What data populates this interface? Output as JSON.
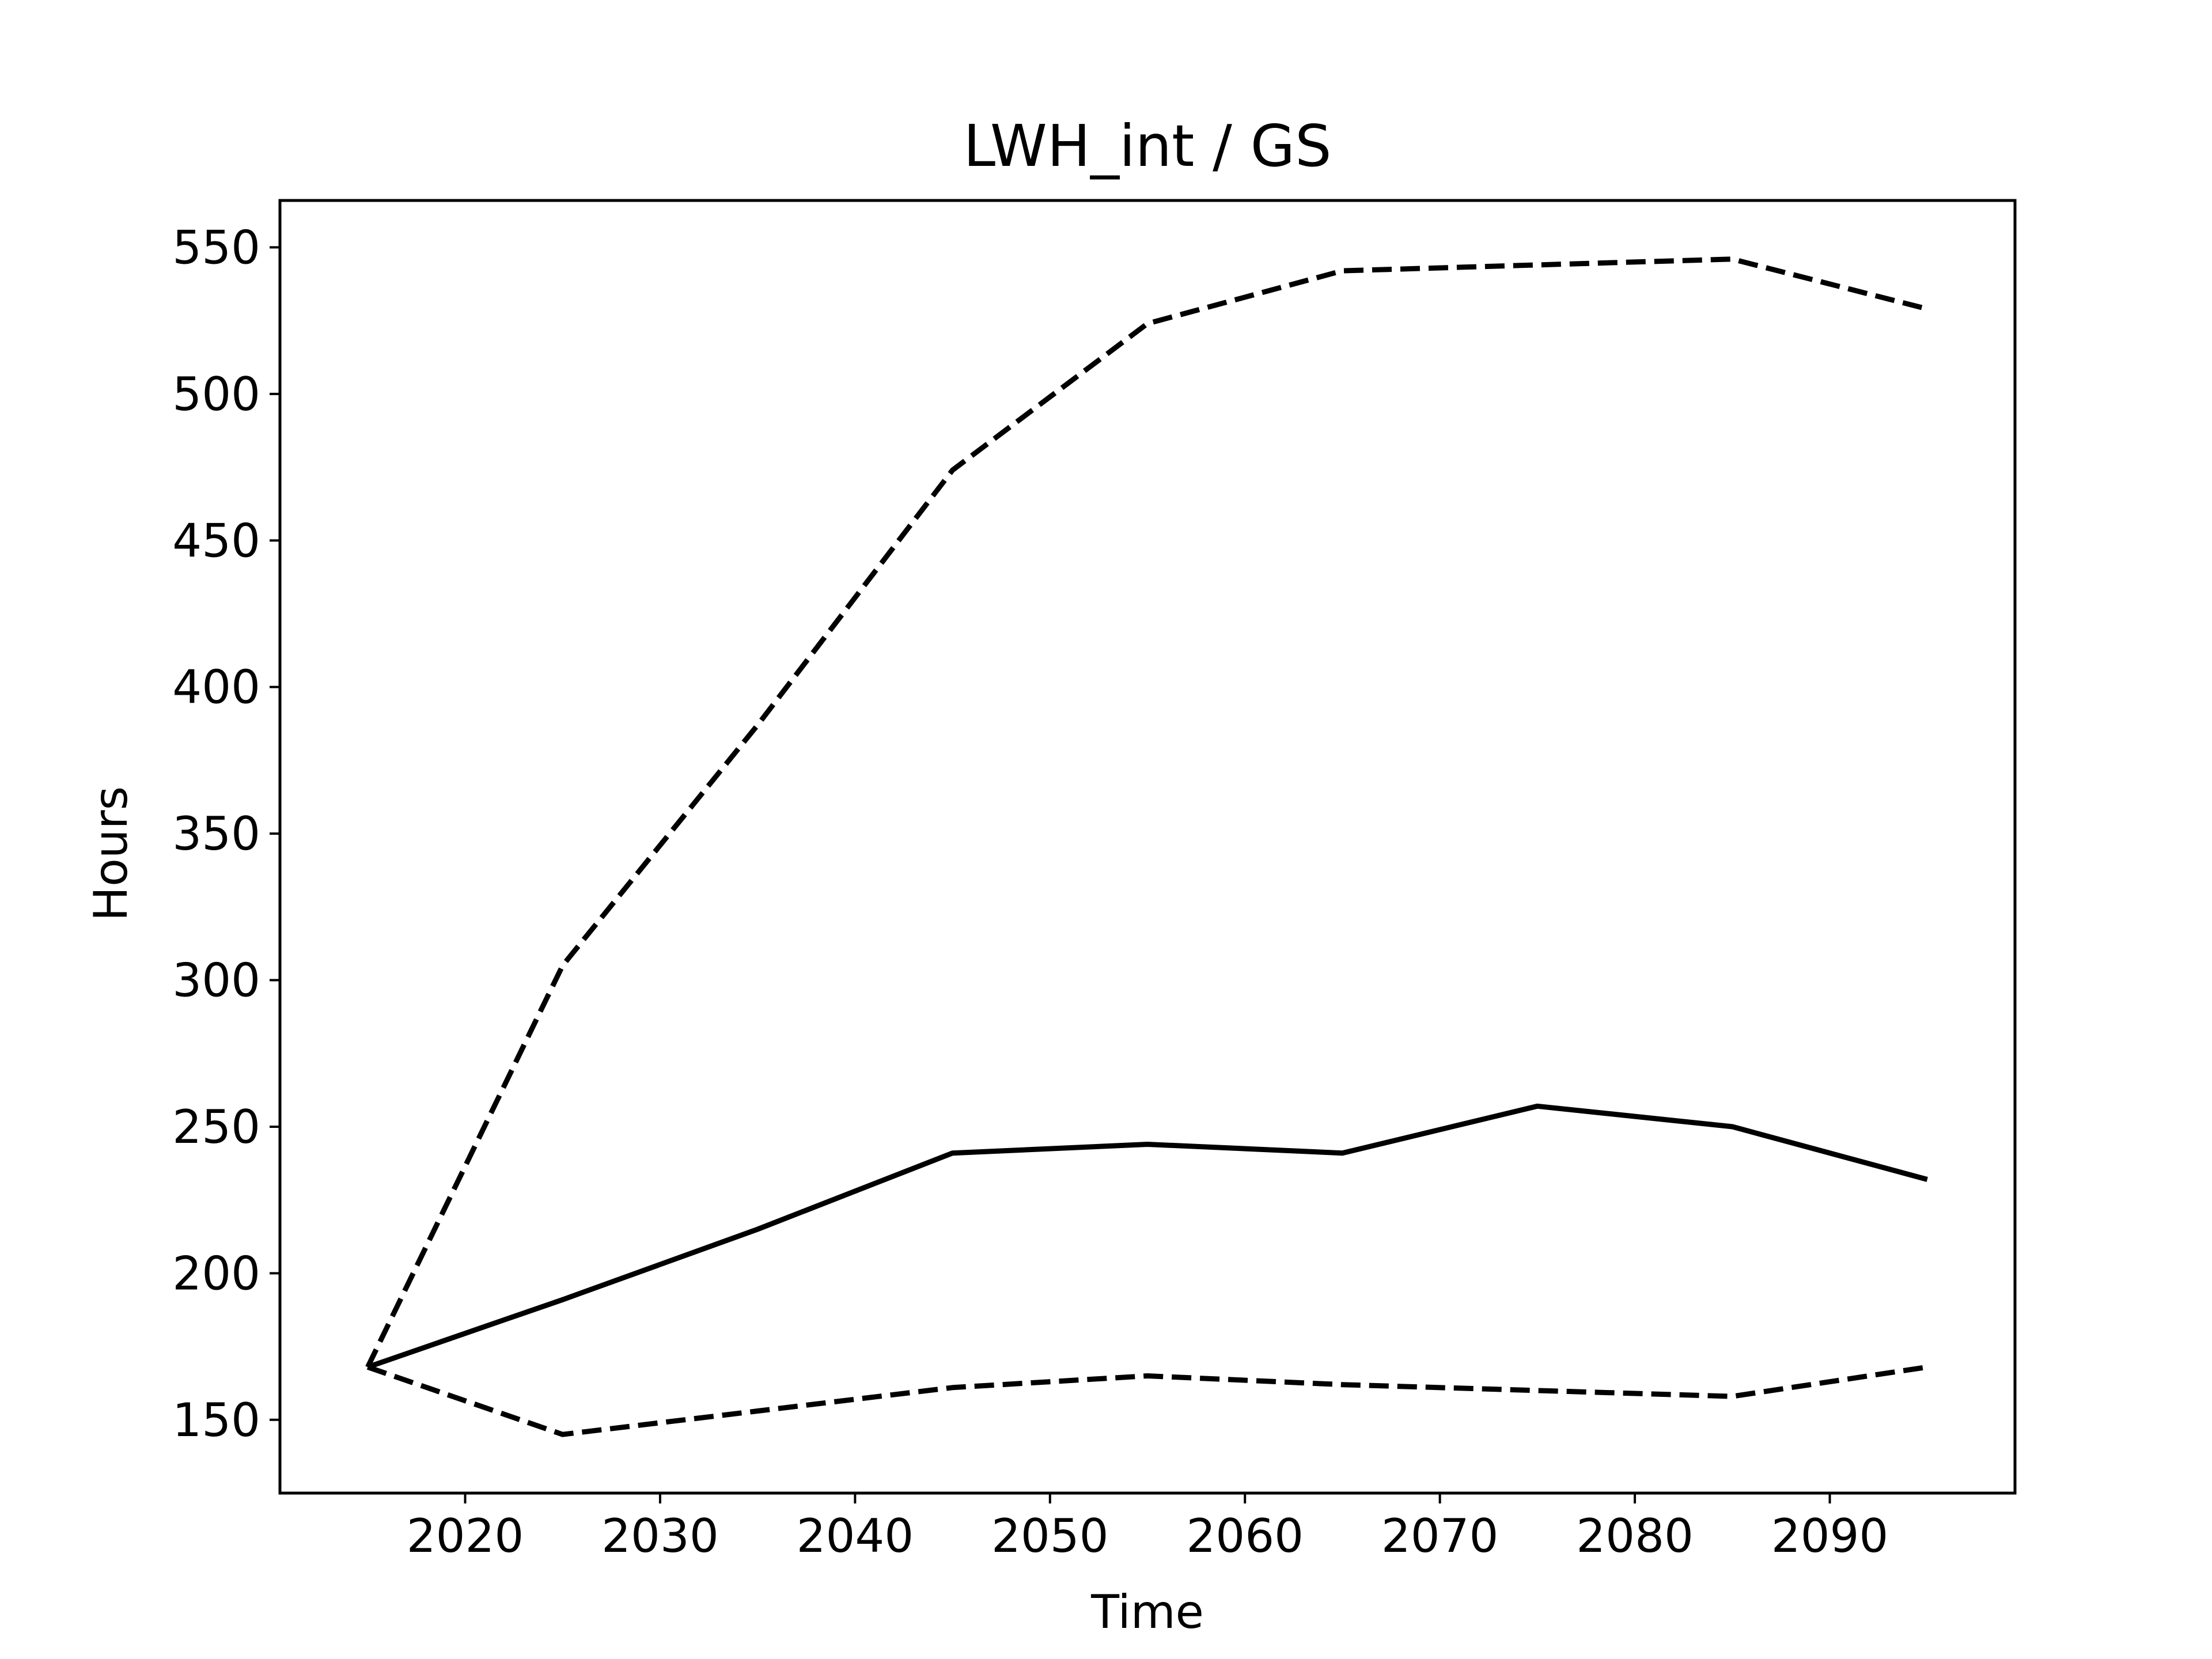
{
  "chart_data": {
    "type": "line",
    "title": "LWH_int / GS",
    "xlabel": "Time",
    "ylabel": "Hours",
    "xlim": [
      2010.5,
      2099.5
    ],
    "ylim": [
      125,
      566
    ],
    "xticks": [
      2020,
      2030,
      2040,
      2050,
      2060,
      2070,
      2080,
      2090
    ],
    "yticks": [
      150,
      200,
      250,
      300,
      350,
      400,
      450,
      500,
      550
    ],
    "grid": false,
    "legend": "none",
    "x": [
      2015,
      2025,
      2035,
      2045,
      2055,
      2065,
      2075,
      2085,
      2095
    ],
    "series": [
      {
        "line_style": "dashed",
        "color": "#000000",
        "values": [
          168,
          305,
          387,
          474,
          524,
          542,
          544,
          546,
          529
        ]
      },
      {
        "line_style": "solid",
        "color": "#000000",
        "values": [
          168,
          191,
          215,
          241,
          244,
          241,
          257,
          250,
          232
        ]
      },
      {
        "line_style": "dashed",
        "color": "#000000",
        "values": [
          168,
          145,
          153,
          161,
          165,
          162,
          160,
          158,
          168
        ]
      }
    ]
  }
}
